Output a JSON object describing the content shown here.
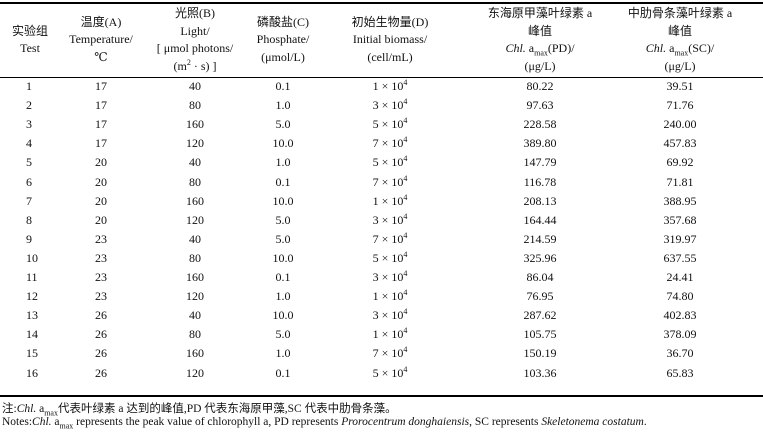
{
  "table": {
    "header": [
      [
        [
          "实验组"
        ],
        [
          "Test"
        ]
      ],
      [
        [
          "温度(A)"
        ],
        [
          "Temperature/"
        ],
        [
          "℃"
        ]
      ],
      [
        [
          "光照(B)"
        ],
        [
          "Light/"
        ],
        [
          "[ μmol photons/"
        ],
        [
          "(m",
          {
            "text": "2",
            "style": "sup"
          },
          " · s) ]"
        ]
      ],
      [
        [
          "磷酸盐(C)"
        ],
        [
          "Phosphate/"
        ],
        [
          "(μmol/L)"
        ]
      ],
      [
        [
          "初始生物量(D)"
        ],
        [
          "Initial biomass/"
        ],
        [
          "(cell/mL)"
        ]
      ],
      [
        [
          "东海原甲藻叶绿素 a"
        ],
        [
          "峰值"
        ],
        [
          {
            "text": "Chl.",
            "style": "italic"
          },
          " a",
          {
            "text": "max",
            "style": "sub"
          },
          "(PD)/"
        ],
        [
          "(μg/L)"
        ]
      ],
      [
        [
          "中肋骨条藻叶绿素 a"
        ],
        [
          "峰值"
        ],
        [
          {
            "text": "Chl.",
            "style": "italic"
          },
          " a",
          {
            "text": "max",
            "style": "sub"
          },
          "(SC)/"
        ],
        [
          "(μg/L)"
        ]
      ]
    ],
    "rows": [
      [
        "1",
        "17",
        "40",
        "0.1",
        {
          "base": "1 × 10",
          "exponent": "4"
        },
        "80.22",
        "39.51"
      ],
      [
        "2",
        "17",
        "80",
        "1.0",
        {
          "base": "3 × 10",
          "exponent": "4"
        },
        "97.63",
        "71.76"
      ],
      [
        "3",
        "17",
        "160",
        "5.0",
        {
          "base": "5 × 10",
          "exponent": "4"
        },
        "228.58",
        "240.00"
      ],
      [
        "4",
        "17",
        "120",
        "10.0",
        {
          "base": "7 × 10",
          "exponent": "4"
        },
        "389.80",
        "457.83"
      ],
      [
        "5",
        "20",
        "40",
        "1.0",
        {
          "base": "5 × 10",
          "exponent": "4"
        },
        "147.79",
        "69.92"
      ],
      [
        "6",
        "20",
        "80",
        "0.1",
        {
          "base": "7 × 10",
          "exponent": "4"
        },
        "116.78",
        "71.81"
      ],
      [
        "7",
        "20",
        "160",
        "10.0",
        {
          "base": "1 × 10",
          "exponent": "4"
        },
        "208.13",
        "388.95"
      ],
      [
        "8",
        "20",
        "120",
        "5.0",
        {
          "base": "3 × 10",
          "exponent": "4"
        },
        "164.44",
        "357.68"
      ],
      [
        "9",
        "23",
        "40",
        "5.0",
        {
          "base": "7 × 10",
          "exponent": "4"
        },
        "214.59",
        "319.97"
      ],
      [
        "10",
        "23",
        "80",
        "10.0",
        {
          "base": "5 × 10",
          "exponent": "4"
        },
        "325.96",
        "637.55"
      ],
      [
        "11",
        "23",
        "160",
        "0.1",
        {
          "base": "3 × 10",
          "exponent": "4"
        },
        "86.04",
        "24.41"
      ],
      [
        "12",
        "23",
        "120",
        "1.0",
        {
          "base": "1 × 10",
          "exponent": "4"
        },
        "76.95",
        "74.80"
      ],
      [
        "13",
        "26",
        "40",
        "10.0",
        {
          "base": "3 × 10",
          "exponent": "4"
        },
        "287.62",
        "402.83"
      ],
      [
        "14",
        "26",
        "80",
        "5.0",
        {
          "base": "1 × 10",
          "exponent": "4"
        },
        "105.75",
        "378.09"
      ],
      [
        "15",
        "26",
        "160",
        "1.0",
        {
          "base": "7 × 10",
          "exponent": "4"
        },
        "150.19",
        "36.70"
      ],
      [
        "16",
        "26",
        "120",
        "0.1",
        {
          "base": "5 × 10",
          "exponent": "4"
        },
        "103.36",
        "65.83"
      ]
    ]
  },
  "notes": [
    [
      "注:",
      {
        "text": "Chl.",
        "style": "italic"
      },
      " a",
      {
        "text": "max",
        "style": "sub"
      },
      "代表叶绿素 a 达到的峰值,PD 代表东海原甲藻,SC 代表中肋骨条藻。"
    ],
    [
      "Notes:",
      {
        "text": "Chl.",
        "style": "italic"
      },
      " a",
      {
        "text": "max",
        "style": "sub"
      },
      " represents the peak value of chlorophyll a, PD represents ",
      {
        "text": "Prorocentrum donghaiensis",
        "style": "italic"
      },
      ", SC represents ",
      {
        "text": "Skeletonema costatum",
        "style": "italic"
      },
      "."
    ]
  ]
}
